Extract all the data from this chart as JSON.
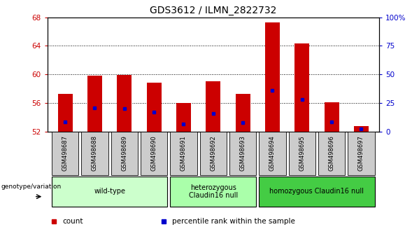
{
  "title": "GDS3612 / ILMN_2822732",
  "samples": [
    "GSM498687",
    "GSM498688",
    "GSM498689",
    "GSM498690",
    "GSM498691",
    "GSM498692",
    "GSM498693",
    "GSM498694",
    "GSM498695",
    "GSM498696",
    "GSM498697"
  ],
  "red_values": [
    57.3,
    59.8,
    59.9,
    58.8,
    56.0,
    59.0,
    57.3,
    67.3,
    64.3,
    56.1,
    52.7
  ],
  "blue_values": [
    53.3,
    55.3,
    55.2,
    54.7,
    53.0,
    54.5,
    53.2,
    57.8,
    56.5,
    53.3,
    52.4
  ],
  "baseline": 52,
  "ylim_left": [
    52,
    68
  ],
  "ylim_right": [
    0,
    100
  ],
  "yticks_left": [
    52,
    56,
    60,
    64,
    68
  ],
  "yticks_right": [
    0,
    25,
    50,
    75,
    100
  ],
  "ytick_labels_right": [
    "0",
    "25",
    "50",
    "75",
    "100%"
  ],
  "groups": [
    {
      "label": "wild-type",
      "start": 0,
      "end": 3,
      "color": "#ccffcc"
    },
    {
      "label": "heterozygous\nClaudin16 null",
      "start": 4,
      "end": 6,
      "color": "#aaffaa"
    },
    {
      "label": "homozygous Claudin16 null",
      "start": 7,
      "end": 10,
      "color": "#44cc44"
    }
  ],
  "bar_color": "#cc0000",
  "blue_color": "#0000cc",
  "bar_width": 0.5,
  "bg_color": "#ffffff",
  "tick_color_left": "#cc0000",
  "tick_color_right": "#0000cc",
  "legend_items": [
    "count",
    "percentile rank within the sample"
  ],
  "legend_colors": [
    "#cc0000",
    "#0000cc"
  ],
  "genotype_label": "genotype/variation",
  "sample_box_color": "#cccccc",
  "group_colors": [
    "#ccffcc",
    "#aaffaa",
    "#44cc44"
  ]
}
